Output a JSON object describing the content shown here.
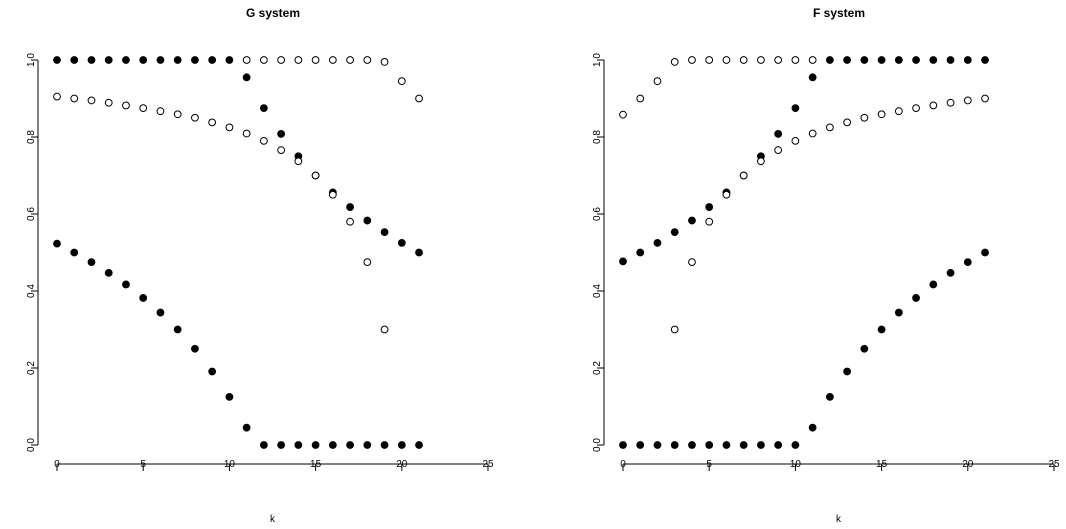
{
  "chart_data": [
    {
      "type": "scatter",
      "title": "G system",
      "xlabel": "k",
      "ylabel": "",
      "xlim": [
        0,
        25
      ],
      "ylim": [
        0,
        1
      ],
      "xticks": [
        "0",
        "5",
        "10",
        "15",
        "20",
        "25"
      ],
      "yticks": [
        "0.0",
        "0.2",
        "0.4",
        "0.6",
        "0.8",
        "1.0"
      ],
      "grid": false,
      "series": [
        {
          "marker": "filled",
          "points": [
            [
              0,
              1
            ],
            [
              1,
              1
            ],
            [
              2,
              1
            ],
            [
              3,
              1
            ],
            [
              4,
              1
            ],
            [
              5,
              1
            ],
            [
              6,
              1
            ],
            [
              7,
              1
            ],
            [
              8,
              1
            ],
            [
              9,
              1
            ],
            [
              10,
              1
            ],
            [
              11,
              0.955
            ],
            [
              12,
              0.875
            ],
            [
              13,
              0.808
            ],
            [
              14,
              0.75
            ],
            [
              15,
              0.7
            ],
            [
              16,
              0.656
            ],
            [
              17,
              0.618
            ],
            [
              18,
              0.583
            ],
            [
              19,
              0.553
            ],
            [
              20,
              0.525
            ],
            [
              21,
              0.5
            ]
          ]
        },
        {
          "marker": "filled",
          "points": [
            [
              0,
              0.523
            ],
            [
              1,
              0.5
            ],
            [
              2,
              0.475
            ],
            [
              3,
              0.447
            ],
            [
              4,
              0.417
            ],
            [
              5,
              0.382
            ],
            [
              6,
              0.344
            ],
            [
              7,
              0.3
            ],
            [
              8,
              0.25
            ],
            [
              9,
              0.191
            ],
            [
              10,
              0.125
            ],
            [
              11,
              0.045
            ],
            [
              12,
              0
            ],
            [
              13,
              0
            ],
            [
              14,
              0
            ],
            [
              15,
              0
            ],
            [
              16,
              0
            ],
            [
              17,
              0
            ],
            [
              18,
              0
            ],
            [
              19,
              0
            ],
            [
              20,
              0
            ],
            [
              21,
              0
            ]
          ]
        },
        {
          "marker": "open",
          "points": [
            [
              0,
              0.905
            ],
            [
              1,
              0.9
            ],
            [
              2,
              0.895
            ],
            [
              3,
              0.889
            ],
            [
              4,
              0.882
            ],
            [
              5,
              0.875
            ],
            [
              6,
              0.867
            ],
            [
              7,
              0.859
            ],
            [
              8,
              0.85
            ],
            [
              9,
              0.838
            ],
            [
              10,
              0.825
            ],
            [
              11,
              0.809
            ],
            [
              12,
              0.79
            ],
            [
              13,
              0.766
            ],
            [
              14,
              0.737
            ],
            [
              15,
              0.7
            ],
            [
              16,
              0.65
            ],
            [
              17,
              0.58
            ],
            [
              18,
              0.475
            ],
            [
              19,
              0.3
            ]
          ]
        },
        {
          "marker": "open",
          "points": [
            [
              11,
              1
            ],
            [
              12,
              1
            ],
            [
              13,
              1
            ],
            [
              14,
              1
            ],
            [
              15,
              1
            ],
            [
              16,
              1
            ],
            [
              17,
              1
            ],
            [
              18,
              1
            ],
            [
              19,
              0.995
            ],
            [
              20,
              0.945
            ],
            [
              21,
              0.9
            ]
          ]
        }
      ]
    },
    {
      "type": "scatter",
      "title": "F system",
      "xlabel": "k",
      "ylabel": "",
      "xlim": [
        0,
        25
      ],
      "ylim": [
        0,
        1
      ],
      "xticks": [
        "0",
        "5",
        "10",
        "15",
        "20",
        "25"
      ],
      "yticks": [
        "0.0",
        "0.2",
        "0.4",
        "0.6",
        "0.8",
        "1.0"
      ],
      "grid": false,
      "series": [
        {
          "marker": "filled",
          "points": [
            [
              0,
              0.477
            ],
            [
              1,
              0.5
            ],
            [
              2,
              0.525
            ],
            [
              3,
              0.553
            ],
            [
              4,
              0.583
            ],
            [
              5,
              0.618
            ],
            [
              6,
              0.656
            ],
            [
              7,
              0.7
            ],
            [
              8,
              0.75
            ],
            [
              9,
              0.808
            ],
            [
              10,
              0.875
            ],
            [
              11,
              0.955
            ],
            [
              12,
              1
            ],
            [
              13,
              1
            ],
            [
              14,
              1
            ],
            [
              15,
              1
            ],
            [
              16,
              1
            ],
            [
              17,
              1
            ],
            [
              18,
              1
            ],
            [
              19,
              1
            ],
            [
              20,
              1
            ],
            [
              21,
              1
            ]
          ]
        },
        {
          "marker": "filled",
          "points": [
            [
              0,
              0
            ],
            [
              1,
              0
            ],
            [
              2,
              0
            ],
            [
              3,
              0
            ],
            [
              4,
              0
            ],
            [
              5,
              0
            ],
            [
              6,
              0
            ],
            [
              7,
              0
            ],
            [
              8,
              0
            ],
            [
              9,
              0
            ],
            [
              10,
              0
            ],
            [
              11,
              0.045
            ],
            [
              12,
              0.125
            ],
            [
              13,
              0.191
            ],
            [
              14,
              0.25
            ],
            [
              15,
              0.3
            ],
            [
              16,
              0.344
            ],
            [
              17,
              0.382
            ],
            [
              18,
              0.417
            ],
            [
              19,
              0.447
            ],
            [
              20,
              0.475
            ],
            [
              21,
              0.5
            ]
          ]
        },
        {
          "marker": "open",
          "points": [
            [
              0,
              0.858
            ],
            [
              1,
              0.9
            ],
            [
              2,
              0.945
            ],
            [
              3,
              0.995
            ],
            [
              4,
              1
            ],
            [
              5,
              1
            ],
            [
              6,
              1
            ],
            [
              7,
              1
            ],
            [
              8,
              1
            ],
            [
              9,
              1
            ],
            [
              10,
              1
            ],
            [
              11,
              1
            ]
          ]
        },
        {
          "marker": "open",
          "points": [
            [
              3,
              0.3
            ],
            [
              4,
              0.475
            ],
            [
              5,
              0.58
            ],
            [
              6,
              0.65
            ],
            [
              7,
              0.7
            ],
            [
              8,
              0.737
            ],
            [
              9,
              0.766
            ],
            [
              10,
              0.79
            ],
            [
              11,
              0.809
            ],
            [
              12,
              0.825
            ],
            [
              13,
              0.838
            ],
            [
              14,
              0.85
            ],
            [
              15,
              0.859
            ],
            [
              16,
              0.867
            ],
            [
              17,
              0.875
            ],
            [
              18,
              0.882
            ],
            [
              19,
              0.889
            ],
            [
              20,
              0.895
            ],
            [
              21,
              0.9
            ]
          ]
        }
      ]
    }
  ]
}
